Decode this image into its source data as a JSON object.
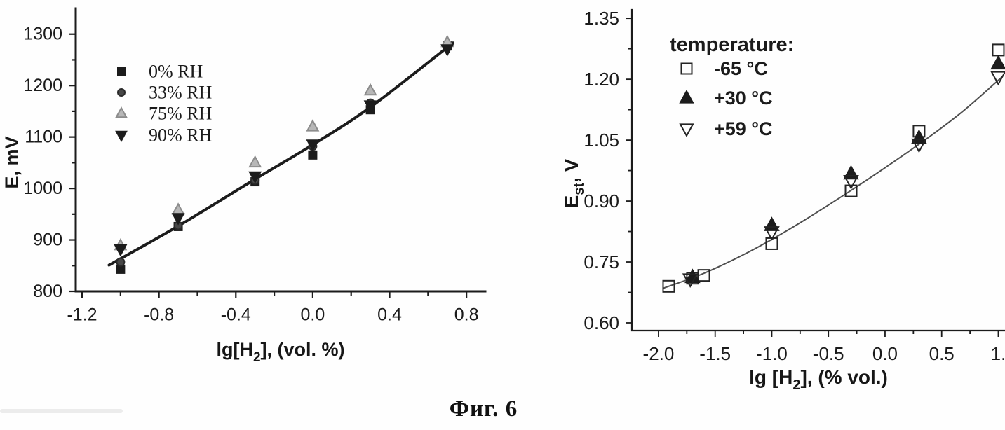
{
  "caption": "Фиг. 6",
  "chart_data": [
    {
      "id": "left",
      "type": "scatter",
      "title": "",
      "xlabel": "lg[H2], (vol. %)",
      "xlabel_parts": [
        {
          "t": "lg[H"
        },
        {
          "t": "2",
          "sub": true
        },
        {
          "t": "], (vol. %)"
        }
      ],
      "ylabel": "E, mV",
      "ylabel_parts": [
        {
          "t": "E, mV"
        }
      ],
      "xlim": [
        -1.233,
        0.898
      ],
      "ylim": [
        800,
        1350
      ],
      "grid": false,
      "legend_position": "top-left",
      "x_ticks": [
        {
          "v": -1.2,
          "label": "-1.2"
        },
        {
          "v": -0.8,
          "label": "-0.8"
        },
        {
          "v": -0.4,
          "label": "-0.4"
        },
        {
          "v": 0.0,
          "label": "0.0"
        },
        {
          "v": 0.4,
          "label": "0.4"
        },
        {
          "v": 0.8,
          "label": "0.8"
        }
      ],
      "x_minor_step": 0.2,
      "y_ticks": [
        {
          "v": 800,
          "label": "800"
        },
        {
          "v": 900,
          "label": "900"
        },
        {
          "v": 1000,
          "label": "1000"
        },
        {
          "v": 1100,
          "label": "1100"
        },
        {
          "v": 1200,
          "label": "1200"
        },
        {
          "v": 1300,
          "label": "1300"
        }
      ],
      "y_minor_step": 50,
      "series": [
        {
          "name": "0% RH",
          "marker": {
            "shape": "square",
            "fill": "#1c1c1c",
            "stroke": "#1c1c1c",
            "size": 11
          },
          "points": [
            [
              -1.0,
              843
            ],
            [
              -0.7,
              926
            ],
            [
              -0.3,
              1013
            ],
            [
              0.0,
              1065
            ],
            [
              0.3,
              1153
            ],
            [
              0.7,
              1277
            ]
          ]
        },
        {
          "name": "33% RH",
          "marker": {
            "shape": "circle",
            "fill": "#474747",
            "stroke": "#2a2a2a",
            "size": 11
          },
          "points": [
            [
              -1.0,
              857
            ],
            [
              -0.7,
              928
            ],
            [
              -0.3,
              1016
            ],
            [
              0.0,
              1082
            ],
            [
              0.3,
              1166
            ],
            [
              0.7,
              1279
            ]
          ]
        },
        {
          "name": "75% RH",
          "marker": {
            "shape": "tri-up",
            "fill": "#b7b7b7",
            "stroke": "#8c8c8c",
            "size": 13
          },
          "points": [
            [
              -1.0,
              889
            ],
            [
              -0.7,
              958
            ],
            [
              -0.3,
              1050
            ],
            [
              0.0,
              1120
            ],
            [
              0.3,
              1190
            ],
            [
              0.7,
              1284
            ]
          ]
        },
        {
          "name": "90% RH",
          "marker": {
            "shape": "tri-down",
            "fill": "#1c1c1c",
            "stroke": "#1c1c1c",
            "size": 13
          },
          "points": [
            [
              -1.0,
              882
            ],
            [
              -0.7,
              943
            ],
            [
              -0.3,
              1024
            ],
            [
              0.0,
              1086
            ],
            [
              0.3,
              1162
            ],
            [
              0.7,
              1271
            ]
          ]
        }
      ],
      "trend": {
        "color": "#1c1c1c",
        "width": 4,
        "points": [
          [
            -1.06,
            851
          ],
          [
            -0.7,
            927
          ],
          [
            -0.3,
            1018
          ],
          [
            0.0,
            1085
          ],
          [
            0.3,
            1158
          ],
          [
            0.73,
            1283
          ]
        ]
      },
      "legend": {
        "title": "",
        "entries": [
          "0% RH",
          "33% RH",
          "75% RH",
          "90% RH"
        ]
      }
    },
    {
      "id": "right",
      "type": "scatter",
      "title": "",
      "xlabel": "lg [H2], (% vol.)",
      "xlabel_parts": [
        {
          "t": "lg [H"
        },
        {
          "t": "2",
          "sub": true
        },
        {
          "t": "], (% vol.)"
        }
      ],
      "ylabel": "Est, V",
      "ylabel_parts": [
        {
          "t": "E"
        },
        {
          "t": "st",
          "sub": true
        },
        {
          "t": ", V"
        }
      ],
      "xlim": [
        -2.235,
        1.059
      ],
      "ylim": [
        0.581,
        1.371
      ],
      "grid": false,
      "legend_position": "top-left",
      "x_ticks": [
        {
          "v": -2.0,
          "label": "-2.0"
        },
        {
          "v": -1.5,
          "label": "-1.5"
        },
        {
          "v": -1.0,
          "label": "-1.0"
        },
        {
          "v": -0.5,
          "label": "-0.5"
        },
        {
          "v": 0.0,
          "label": "0.0"
        },
        {
          "v": 0.5,
          "label": "0.5"
        },
        {
          "v": 1.0,
          "label": "1."
        }
      ],
      "x_minor_step": 0.25,
      "y_ticks": [
        {
          "v": 0.6,
          "label": "0.60"
        },
        {
          "v": 0.75,
          "label": "0.75"
        },
        {
          "v": 0.9,
          "label": "0.90"
        },
        {
          "v": 1.05,
          "label": "1.05"
        },
        {
          "v": 1.2,
          "label": "1.20"
        },
        {
          "v": 1.35,
          "label": "1.35"
        }
      ],
      "y_minor_step": 0.075,
      "series": [
        {
          "name": "-65 °C",
          "marker": {
            "shape": "square",
            "fill": "none",
            "stroke": "#242424",
            "size": 16
          },
          "points": [
            [
              -1.91,
              0.69
            ],
            [
              -1.7,
              0.71
            ],
            [
              -1.6,
              0.717
            ],
            [
              -1.0,
              0.795
            ],
            [
              -0.3,
              0.925
            ],
            [
              0.3,
              1.072
            ],
            [
              1.0,
              1.272
            ]
          ]
        },
        {
          "name": "+30 °C",
          "marker": {
            "shape": "tri-up",
            "fill": "#1c1c1c",
            "stroke": "#1c1c1c",
            "size": 16
          },
          "points": [
            [
              -1.7,
              0.712
            ],
            [
              -1.0,
              0.84
            ],
            [
              -0.3,
              0.967
            ],
            [
              0.3,
              1.055
            ],
            [
              1.0,
              1.238
            ]
          ]
        },
        {
          "name": "+59 °C",
          "marker": {
            "shape": "tri-down",
            "fill": "none",
            "stroke": "#242424",
            "size": 16
          },
          "points": [
            [
              -1.72,
              0.708
            ],
            [
              -1.0,
              0.824
            ],
            [
              -0.3,
              0.95
            ],
            [
              0.3,
              1.04
            ],
            [
              1.0,
              1.206
            ]
          ]
        }
      ],
      "trend": {
        "color": "#4f4f4f",
        "width": 2,
        "points": [
          [
            -1.95,
            0.686
          ],
          [
            -1.6,
            0.722
          ],
          [
            -1.2,
            0.775
          ],
          [
            -0.8,
            0.838
          ],
          [
            -0.4,
            0.908
          ],
          [
            0.0,
            0.982
          ],
          [
            0.4,
            1.06
          ],
          [
            0.7,
            1.124
          ],
          [
            1.03,
            1.205
          ]
        ]
      },
      "legend": {
        "title": "temperature:",
        "entries": [
          "-65 °C",
          "+30 °C",
          "+59 °C"
        ]
      }
    }
  ]
}
